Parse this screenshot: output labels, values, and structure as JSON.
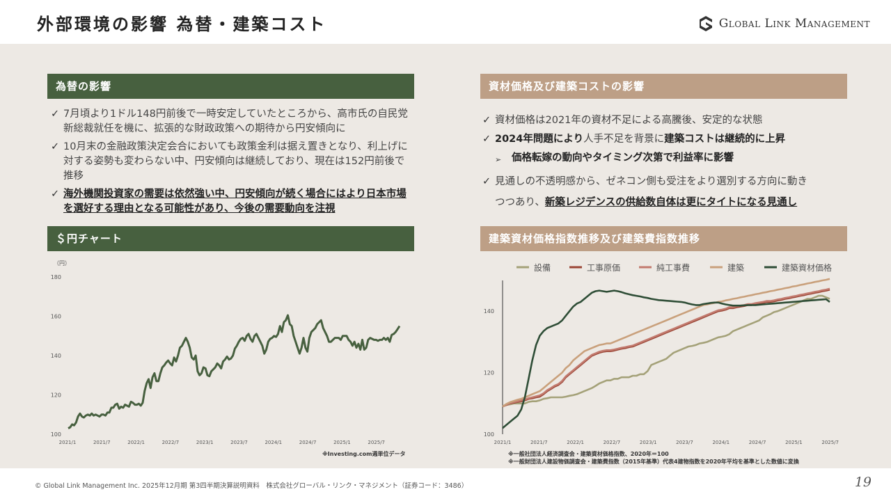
{
  "header": {
    "title": "外部環境の影響 為替・建築コスト",
    "logo_text": "Global Link Management",
    "logo_icon": "gs-monogram-icon"
  },
  "fx_panel": {
    "title": "為替の影響",
    "bullets": [
      {
        "text": "7月頃より1ドル148円前後で一時安定していたところから、高市氏の自民党新総裁就任を機に、拡張的な財政政策への期待から円安傾向に"
      },
      {
        "text": "10月末の金融政策決定会合においても政策金利は据え置きとなり、利上げに対する姿勢も変わらない中、円安傾向は継続しており、現在は152円前後で推移"
      },
      {
        "text": "海外機関投資家の需要は依然強い中、円安傾向が続く場合にはより日本市場を選好する理由となる可能性があり、今後の需要動向を注視"
      }
    ]
  },
  "cost_panel": {
    "title": "資材価格及び建築コストの影響",
    "b1": "資材価格は2021年の資材不足による高騰後、安定的な状態",
    "b2_bold": "2024年問題により",
    "b2_mid": "人手不足を背景に",
    "b2_bold2": "建築コストは継続的に上昇",
    "sub": "価格転嫁の動向やタイミング次第で利益率に影響",
    "b3a": "見通しの不透明感から、ゼネコン側も受注をより選別する方向に動き",
    "b3b": "つつあり、",
    "b3c": "新築レジデンスの供給数自体は更にタイトになる見通し"
  },
  "usdjpy_panel": {
    "title": "＄円チャート",
    "unit": "（円）",
    "source": "※Investing.com週単位データ"
  },
  "index_panel": {
    "title": "建築資材価格指数推移及び建築費指数推移",
    "note1": "※一般社団法人経済調査会・建築資材価格指数、2020年＝100",
    "note2": "※一般財団法人建設物価調査会・建築費指数（2015年基準）代表4建物指数を2020年平均を基準とした数値に変換"
  },
  "chart_data": [
    {
      "type": "line",
      "title": "",
      "ylabel": "（円）",
      "ylim": [
        100,
        180
      ],
      "yticks": [
        100,
        120,
        140,
        160,
        180
      ],
      "xticks": [
        "2021/1",
        "2021/7",
        "2022/1",
        "2022/7",
        "2023/1",
        "2023/7",
        "2024/1",
        "2024/7",
        "2025/1",
        "2025/7"
      ],
      "grid": false,
      "color": "#47603f",
      "series": [
        {
          "values": [
            103,
            103.5,
            105,
            104.5,
            106,
            109,
            110.5,
            109,
            108.5,
            109.5,
            110,
            109.5,
            110.5,
            109.5,
            110,
            109.5,
            109,
            110,
            110,
            109.5,
            111,
            111,
            113.5,
            113.5,
            115,
            115.5,
            113,
            114,
            113.5,
            115,
            114.5,
            114,
            116.5,
            116,
            115,
            115,
            115.5,
            114.5,
            116,
            122,
            126,
            128,
            123.5,
            129,
            131,
            127,
            127,
            131,
            134,
            135,
            136.5,
            137.5,
            136,
            135,
            139,
            137,
            140,
            144,
            145,
            147,
            149,
            147,
            144,
            139,
            138,
            140,
            132,
            130,
            131,
            134,
            133.5,
            130,
            129.5,
            132,
            133,
            134,
            136,
            135,
            133.5,
            137,
            138,
            139.5,
            138,
            138.5,
            140,
            143.5,
            145,
            147,
            148.5,
            149,
            147.5,
            150,
            151,
            148.5,
            147,
            150,
            151,
            149,
            147,
            145,
            141,
            143,
            147,
            148.5,
            149,
            150,
            149.5,
            151,
            155,
            152,
            157,
            158,
            160.5,
            156,
            155,
            150,
            147,
            144,
            141,
            144,
            149,
            144,
            142,
            149,
            152,
            153,
            154,
            156,
            157,
            158,
            154,
            152,
            150,
            147,
            147,
            148,
            149,
            149,
            149,
            148,
            150,
            150,
            150,
            148,
            147,
            145,
            147,
            144,
            146,
            143,
            148,
            143,
            144,
            148,
            149,
            148.5,
            148,
            148,
            147.5,
            148,
            148,
            149,
            148,
            149,
            147,
            150.5,
            151,
            152,
            153.5,
            155
          ]
        }
      ]
    },
    {
      "type": "line",
      "title": "",
      "ylim": [
        100,
        150
      ],
      "yticks": [
        100,
        120,
        140
      ],
      "xticks": [
        "2021/1",
        "2021/7",
        "2022/1",
        "2022/7",
        "2023/1",
        "2023/7",
        "2024/1",
        "2024/7",
        "2025/1",
        "2025/7"
      ],
      "legend_position": "top",
      "series": [
        {
          "name": "設備",
          "color": "#a4a178",
          "values": [
            109,
            109.5,
            109.7,
            110,
            110,
            110,
            110,
            110.5,
            110.7,
            110.7,
            111,
            111.5,
            111.7,
            112,
            112,
            112,
            112,
            112.2,
            112.5,
            112.7,
            113,
            113.5,
            114,
            114.5,
            115,
            115.7,
            116.5,
            117,
            117.5,
            117.5,
            118,
            118,
            118.5,
            118.5,
            118.5,
            119,
            119,
            119.5,
            119.5,
            120.5,
            122.5,
            123,
            123.5,
            124,
            124.5,
            125.5,
            126.5,
            127,
            127.5,
            128,
            128.5,
            128.7,
            129,
            129.5,
            129.7,
            130,
            130.5,
            131,
            131.5,
            131.7,
            132,
            132.5,
            133.5,
            134,
            134.5,
            135,
            135.5,
            136,
            136.5,
            137,
            138,
            138.5,
            139,
            139.7,
            140,
            140.5,
            141,
            141.5,
            142,
            142.5,
            143,
            143.5,
            144,
            144,
            144.5,
            145,
            145,
            144.5,
            144
          ]
        },
        {
          "name": "工事原価",
          "color": "#9a4535",
          "values": [
            109,
            109.5,
            110,
            110.2,
            110.5,
            110.7,
            111,
            111.5,
            111.7,
            112,
            112.2,
            113,
            114,
            114.7,
            115.5,
            116,
            117,
            118.5,
            119.5,
            120.5,
            121.5,
            122.5,
            123.5,
            124.5,
            125.5,
            126,
            126.5,
            126.8,
            127,
            127,
            127.2,
            127.5,
            127.8,
            128,
            128.3,
            128.5,
            129,
            129.5,
            130,
            130.5,
            131,
            131.5,
            132,
            132.5,
            133,
            133.5,
            134,
            134.5,
            135,
            135.5,
            136,
            136.5,
            137,
            137.5,
            138,
            138.5,
            139,
            139.5,
            140,
            140.2,
            140.5,
            141,
            141,
            141.3,
            141.5,
            141.7,
            142,
            142,
            142.3,
            142.5,
            142.7,
            143,
            143,
            143.2,
            143.5,
            143.7,
            144,
            144.2,
            144.5,
            144.7,
            145,
            145.2,
            145.5,
            145.7,
            146,
            146.2,
            146.5,
            146.7,
            147
          ]
        },
        {
          "name": "純工事費",
          "color": "#c27a6e",
          "values": [
            109,
            109.6,
            110.1,
            110.4,
            110.7,
            111,
            111.3,
            111.7,
            112,
            112.3,
            112.6,
            113.3,
            114.3,
            115,
            115.8,
            116.3,
            117.3,
            118.8,
            119.8,
            120.8,
            121.8,
            122.8,
            123.8,
            124.8,
            125.8,
            126.3,
            126.8,
            127.1,
            127.3,
            127.3,
            127.5,
            127.8,
            128.1,
            128.3,
            128.6,
            128.8,
            129.3,
            129.8,
            130.3,
            130.8,
            131.3,
            131.8,
            132.3,
            132.8,
            133.3,
            133.8,
            134.3,
            134.8,
            135.3,
            135.8,
            136.3,
            136.8,
            137.3,
            137.8,
            138.3,
            138.8,
            139.3,
            139.8,
            140.3,
            140.5,
            140.8,
            141.3,
            141.3,
            141.6,
            141.8,
            142,
            142.3,
            142.3,
            142.6,
            142.8,
            143,
            143.3,
            143.3,
            143.5,
            143.8,
            144,
            144.3,
            144.5,
            144.8,
            145,
            145.3,
            145.5,
            145.8,
            146,
            146.3,
            146.5,
            146.8,
            147,
            147.3
          ]
        },
        {
          "name": "建築",
          "color": "#c9a07b",
          "values": [
            109,
            109.8,
            110.4,
            110.8,
            111.2,
            111.5,
            112,
            112.5,
            113,
            113.5,
            114,
            115,
            116,
            117,
            118,
            119,
            120,
            121.5,
            122.5,
            124,
            125,
            126,
            127,
            127.5,
            128,
            128.5,
            129,
            129.2,
            129.5,
            129.5,
            130,
            130.5,
            131,
            131.5,
            132,
            132.5,
            133,
            133.5,
            134,
            134.5,
            135,
            135.5,
            136,
            136.5,
            137,
            137.5,
            138,
            138.5,
            139,
            139.5,
            140,
            140.5,
            141,
            141.5,
            142,
            142.2,
            142.5,
            142.7,
            143,
            143.2,
            143.5,
            143.7,
            144,
            144.2,
            144.5,
            144.7,
            145,
            145.2,
            145.5,
            145.7,
            146,
            146.2,
            146.5,
            146.7,
            147,
            147.2,
            147.5,
            147.7,
            148,
            148.2,
            148.5,
            148.7,
            149,
            149.2,
            149.5,
            149.7,
            150,
            150.2,
            150.5
          ]
        },
        {
          "name": "建築資材価格",
          "color": "#2e4d36",
          "values": [
            102,
            103,
            104,
            105,
            106,
            108,
            112,
            118,
            124,
            129,
            132,
            133.5,
            134.5,
            135,
            135.5,
            136,
            137,
            138.5,
            140,
            141.5,
            142.5,
            143,
            144,
            145,
            146,
            146.5,
            146.7,
            146.5,
            146.3,
            146.5,
            146.7,
            146.5,
            146.2,
            145.8,
            145.5,
            145.2,
            145,
            144.8,
            144.5,
            144.3,
            144,
            143.8,
            143.6,
            143.5,
            143.4,
            143.3,
            143.2,
            143.1,
            143,
            142.8,
            142.5,
            142.2,
            142,
            142,
            142.3,
            142.5,
            142.7,
            142.8,
            142.8,
            142.5,
            142.2,
            142,
            141.8,
            141.8,
            141.8,
            141.9,
            142,
            142,
            142,
            142.1,
            142.2,
            142.3,
            142.4,
            142.5,
            142.6,
            142.7,
            142.8,
            142.9,
            143,
            143.1,
            143.2,
            143.3,
            143.4,
            143.5,
            143.6,
            143.7,
            143.8,
            143.9,
            143
          ]
        }
      ]
    }
  ],
  "footer": {
    "text": "© Global Link Management Inc. 2025年12月期 第3四半期決算説明資料　株式会社グローバル・リンク・マネジメント（証券コード：3486）",
    "page": "19"
  }
}
